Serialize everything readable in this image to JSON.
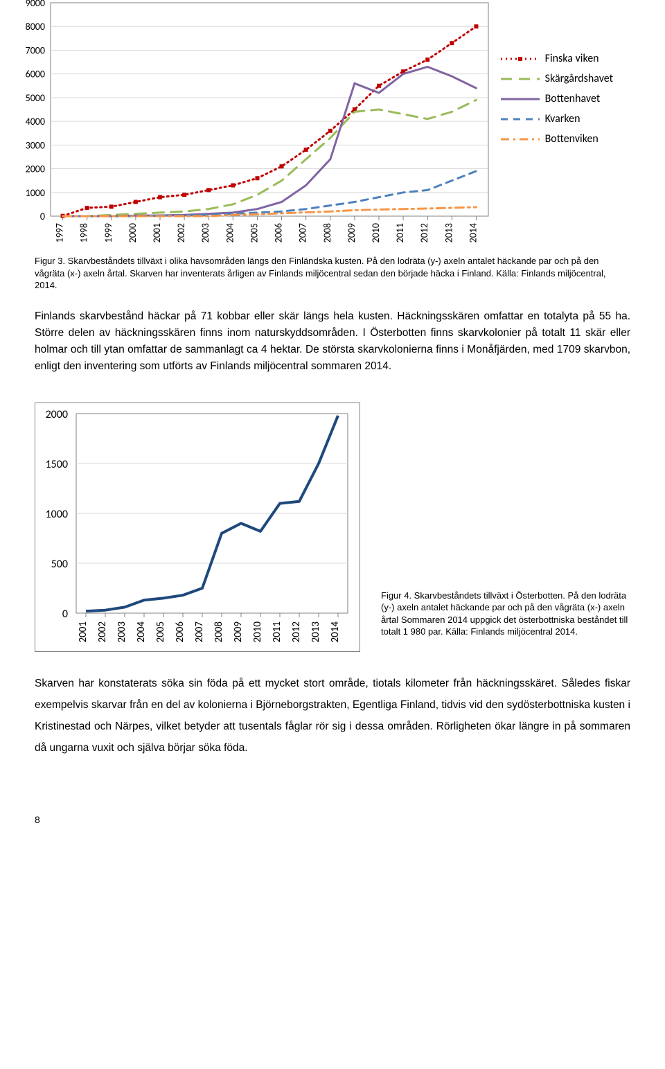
{
  "chart1": {
    "type": "line",
    "xlabels": [
      "1997",
      "1998",
      "1999",
      "2000",
      "2001",
      "2002",
      "2003",
      "2004",
      "2005",
      "2006",
      "2007",
      "2008",
      "2009",
      "2010",
      "2011",
      "2012",
      "2013",
      "2014"
    ],
    "ylim": [
      0,
      9000
    ],
    "ytick_step": 1000,
    "plot_border_color": "#808080",
    "grid_color": "#d9d9d9",
    "background": "#ffffff",
    "tick_font_size": 14,
    "series": [
      {
        "name": "Finska viken",
        "color": "#c00000",
        "style": "dotted",
        "marker": "square",
        "values": [
          10,
          350,
          400,
          600,
          800,
          900,
          1100,
          1300,
          1600,
          2100,
          2800,
          3600,
          4500,
          5500,
          6100,
          6600,
          7300,
          8000
        ]
      },
      {
        "name": "Skärgårdshavet",
        "color": "#9bbb59",
        "style": "longdash",
        "marker": "none",
        "values": [
          0,
          0,
          50,
          100,
          150,
          200,
          300,
          500,
          900,
          1500,
          2400,
          3300,
          4400,
          4500,
          4300,
          4100,
          4400,
          4900
        ]
      },
      {
        "name": "Bottenhavet",
        "color": "#8064a2",
        "style": "solid",
        "marker": "none",
        "values": [
          0,
          0,
          0,
          20,
          30,
          50,
          100,
          150,
          300,
          600,
          1300,
          2400,
          5600,
          5200,
          6000,
          6300,
          5900,
          5400
        ]
      },
      {
        "name": "Kvarken",
        "color": "#4f81bd",
        "style": "dashed",
        "marker": "none",
        "values": [
          0,
          0,
          0,
          0,
          20,
          30,
          50,
          100,
          150,
          200,
          300,
          450,
          600,
          800,
          1000,
          1100,
          1500,
          1900
        ]
      },
      {
        "name": "Bottenviken",
        "color": "#f79646",
        "style": "dashdot",
        "marker": "none",
        "values": [
          0,
          0,
          0,
          0,
          0,
          0,
          0,
          50,
          80,
          120,
          160,
          200,
          250,
          280,
          300,
          320,
          350,
          380
        ]
      }
    ],
    "legend_pos": "right"
  },
  "caption1": "Figur 3. Skarvbeståndets tillväxt i olika havsområden längs den Finländska kusten. På den lodräta (y-) axeln antalet häckande par och på den vågräta (x-) axeln årtal. Skarven har inventerats årligen av Finlands miljöcentral sedan den började häcka i Finland. Källa: Finlands miljöcentral, 2014.",
  "body1": "Finlands skarvbestånd häckar på 71 kobbar eller skär längs hela kusten. Häckningsskären omfattar en totalyta på 55 ha. Större delen av häckningsskären finns inom naturskyddsområden. I Österbotten finns skarvkolonier på totalt 11 skär eller holmar och till ytan omfattar de sammanlagt ca 4 hektar. De största skarvkolonierna finns i Monåfjärden, med 1709 skarvbon, enligt den inventering som utförts av Finlands miljöcentral sommaren 2014.",
  "chart2": {
    "type": "line",
    "xlabels": [
      "2001",
      "2002",
      "2003",
      "2004",
      "2005",
      "2006",
      "2007",
      "2008",
      "2009",
      "2010",
      "2011",
      "2012",
      "2013",
      "2014"
    ],
    "ylim": [
      0,
      2000
    ],
    "ytick_step": 500,
    "plot_border_color": "#808080",
    "grid_color": "#d9d9d9",
    "background": "#ffffff",
    "line_color": "#1f497d",
    "line_width": 4,
    "values": [
      20,
      30,
      60,
      130,
      150,
      180,
      250,
      800,
      900,
      820,
      1100,
      1120,
      1500,
      1980
    ]
  },
  "caption2": "Figur 4. Skarvbeståndets tillväxt i Österbotten. På den lodräta (y-) axeln antalet häckande par och på den vågräta (x-) axeln årtal Sommaren 2014 uppgick det österbottniska beståndet till totalt 1 980 par. Källa: Finlands miljöcentral 2014.",
  "body2": "Skarven har konstaterats söka sin föda på ett mycket stort område, tiotals kilometer från häckningsskäret. Således fiskar exempelvis skarvar från en del av kolonierna i Björneborgstrakten, Egentliga Finland, tidvis vid den sydösterbottniska kusten i Kristinestad och Närpes, vilket betyder att tusentals fåglar rör sig i dessa områden. Rörligheten ökar längre in på sommaren då ungarna vuxit och själva börjar söka föda.",
  "page_number": "8"
}
